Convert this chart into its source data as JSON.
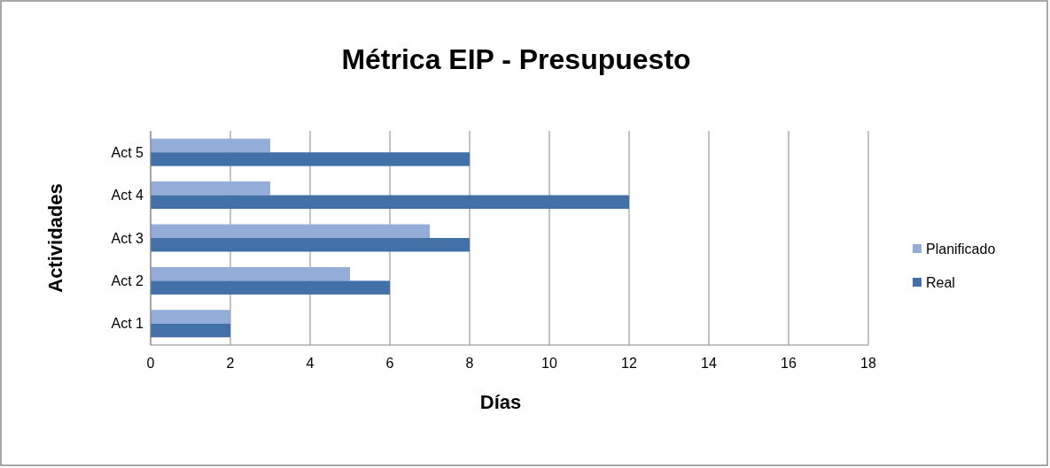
{
  "chart_data": {
    "type": "bar",
    "orientation": "horizontal",
    "title": "Métrica EIP - Presupuesto",
    "xlabel": "Días",
    "ylabel": "Actividades",
    "categories": [
      "Act 5",
      "Act 4",
      "Act 3",
      "Act 2",
      "Act 1"
    ],
    "series": [
      {
        "name": "Planificado",
        "color": "#94acd8",
        "values": [
          3,
          3,
          7,
          5,
          2
        ]
      },
      {
        "name": "Real",
        "color": "#4470a8",
        "values": [
          8,
          12,
          8,
          6,
          2
        ]
      }
    ],
    "xlim": [
      0,
      18
    ],
    "xticks": [
      0,
      2,
      4,
      6,
      8,
      10,
      12,
      14,
      16,
      18
    ],
    "grid": "x",
    "legend": "right"
  }
}
